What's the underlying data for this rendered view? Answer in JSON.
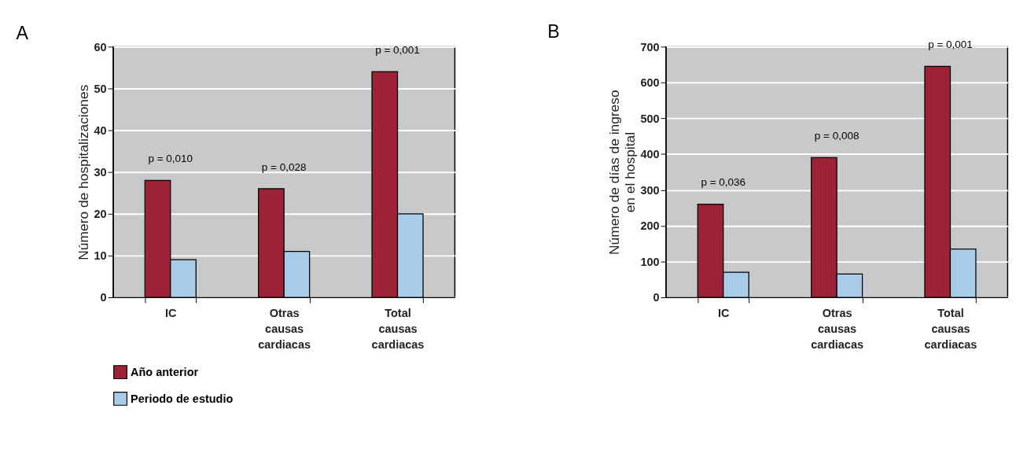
{
  "chart_data": [
    {
      "type": "bar",
      "title": "A",
      "ylabel": "Número de hospitalizaciones",
      "categories": [
        "IC",
        "Otras causas cardiacas",
        "Total causas cardiacas"
      ],
      "series": [
        {
          "name": "Año anterior",
          "color": "#9b2335",
          "values": [
            28,
            26,
            54
          ]
        },
        {
          "name": "Periodo de estudio",
          "color": "#a9cbea",
          "values": [
            9,
            11,
            20
          ]
        }
      ],
      "ylim": [
        0,
        60
      ],
      "yticks": [
        0,
        10,
        20,
        30,
        40,
        50,
        60
      ],
      "grid": "y",
      "legend": "bottom",
      "annotations": [
        "p = 0,010",
        "p = 0,028",
        "p = 0,001"
      ]
    },
    {
      "type": "bar",
      "title": "B",
      "ylabel": "Número de días  de ingreso\nen el hospital",
      "categories": [
        "IC",
        "Otras causas cardiacas",
        "Total causas cardiacas"
      ],
      "series": [
        {
          "name": "Año anterior",
          "color": "#9b2335",
          "values": [
            260,
            390,
            645
          ]
        },
        {
          "name": "Periodo de estudio",
          "color": "#a9cbea",
          "values": [
            70,
            65,
            135
          ]
        }
      ],
      "ylim": [
        0,
        700
      ],
      "yticks": [
        0,
        100,
        200,
        300,
        400,
        500,
        600,
        700
      ],
      "grid": "y",
      "legend": "bottom",
      "annotations": [
        "p = 0,036",
        "p = 0,008",
        "p = 0,001"
      ]
    }
  ]
}
